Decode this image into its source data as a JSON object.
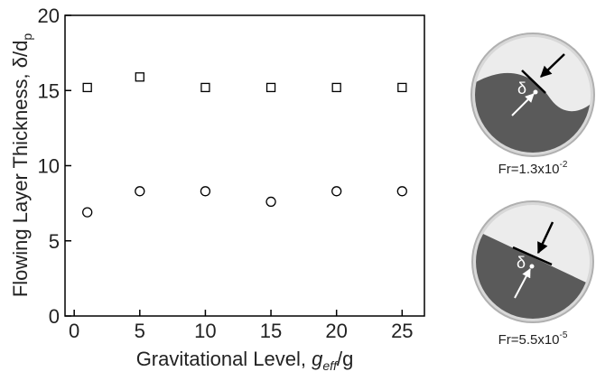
{
  "chart_data": {
    "type": "scatter",
    "xlabel": [
      "Gravitational Level, ",
      "g",
      "eff",
      "/g"
    ],
    "ylabel": [
      "Flowing Layer Thickness, ",
      "δ/d",
      "p"
    ],
    "x": [
      1,
      5,
      10,
      15,
      20,
      25
    ],
    "series": [
      {
        "marker": "square",
        "color": "#000000",
        "values": [
          15.2,
          15.9,
          15.2,
          15.2,
          15.2,
          15.2
        ]
      },
      {
        "marker": "circle",
        "color": "#000000",
        "values": [
          6.9,
          8.3,
          8.3,
          7.6,
          8.3,
          8.3
        ]
      }
    ],
    "xlim": [
      -0.7,
      26.7
    ],
    "xticks": [
      0,
      5,
      10,
      15,
      20,
      25
    ],
    "ylim": [
      0,
      20
    ],
    "yticks": [
      0,
      5,
      10,
      15,
      20
    ]
  },
  "insets": [
    {
      "symbol": "δ",
      "caption": [
        "Fr=1.3x10",
        "-2"
      ]
    },
    {
      "symbol": "δ",
      "caption": [
        "Fr=5.5x10",
        "-5"
      ]
    }
  ]
}
